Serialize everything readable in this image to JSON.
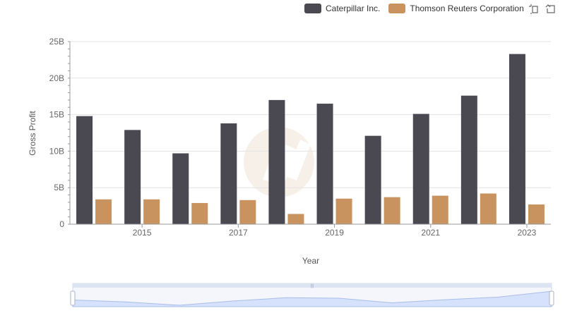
{
  "chart_data": {
    "type": "bar",
    "title": "",
    "xlabel": "Year",
    "ylabel": "Gross Profit",
    "ylim": [
      0,
      25000000000
    ],
    "yticks": [
      {
        "value": 0,
        "label": "0"
      },
      {
        "value": 5000000000,
        "label": "5B"
      },
      {
        "value": 10000000000,
        "label": "10B"
      },
      {
        "value": 15000000000,
        "label": "15B"
      },
      {
        "value": 20000000000,
        "label": "20B"
      },
      {
        "value": 25000000000,
        "label": "25B"
      }
    ],
    "categories": [
      "2014",
      "2015",
      "2016",
      "2017",
      "2018",
      "2019",
      "2020",
      "2021",
      "2022",
      "2023"
    ],
    "xtick_labels": [
      "2015",
      "2017",
      "2019",
      "2021",
      "2023"
    ],
    "series": [
      {
        "name": "Caterpillar Inc.",
        "color": "#4a4951",
        "values": [
          14800000000,
          12900000000,
          9700000000,
          13800000000,
          17000000000,
          16500000000,
          12100000000,
          15100000000,
          17600000000,
          23300000000
        ]
      },
      {
        "name": "Thomson Reuters Corporation",
        "color": "#c8935f",
        "values": [
          3400000000,
          3400000000,
          2900000000,
          3300000000,
          1400000000,
          3500000000,
          3700000000,
          3900000000,
          4200000000,
          2700000000
        ]
      }
    ],
    "legend_position": "top-right",
    "grid": true
  },
  "toolbar": {
    "zoom_icon": "zoom-select-icon",
    "restore_icon": "restore-icon"
  }
}
